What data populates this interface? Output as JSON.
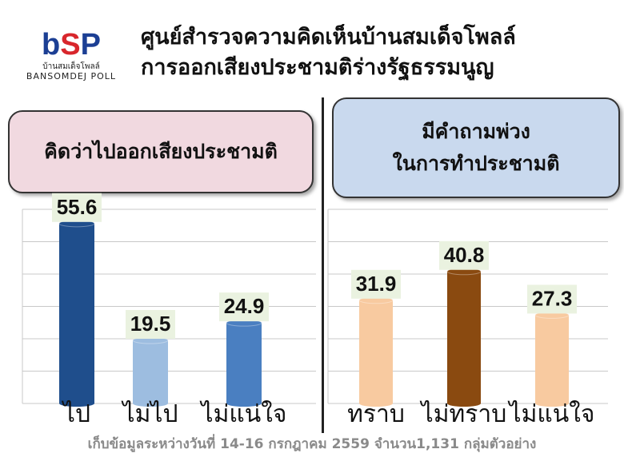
{
  "logo": {
    "mark": "bSP",
    "thai": "บ้านสมเด็จโพลล์",
    "en": "BANSOMDEJ POLL"
  },
  "title": {
    "line1": "ศูนย์สำรวจความคิดเห็นบ้านสมเด็จโพลล์",
    "line2": "การออกเสียงประชามติร่างรัฐธรรมนูญ"
  },
  "panels": {
    "left": {
      "label": "คิดว่าไปออกเสียงประชามติ"
    },
    "right": {
      "line1": "มีคำถามพ่วง",
      "line2": "ในการทำประชามติ"
    }
  },
  "chart_data": [
    {
      "type": "bar",
      "categories": [
        "ไป",
        "ไม่ไป",
        "ไม่แน่ใจ"
      ],
      "values": [
        55.6,
        19.5,
        24.9
      ],
      "colors": [
        "#1f4e8c",
        "#9dbde0",
        "#4a7fc1"
      ],
      "grid": true
    },
    {
      "type": "bar",
      "categories": [
        "ทราบ",
        "ไม่ทราบ",
        "ไม่แน่ใจ"
      ],
      "values": [
        31.9,
        40.8,
        27.3
      ],
      "colors": [
        "#f8caa0",
        "#8a4a10",
        "#f8caa0"
      ],
      "grid": true
    }
  ],
  "footer": "เก็บข้อมูลระหว่างวันที่ 14-16 กรกฎาคม 2559 จำนวน1,131 กลุ่มตัวอย่าง"
}
